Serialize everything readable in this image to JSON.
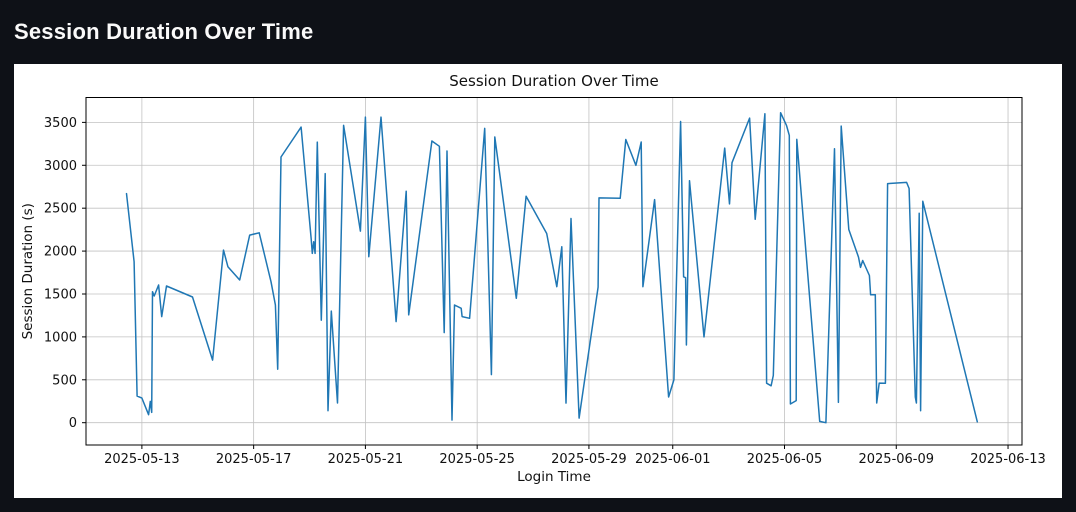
{
  "page": {
    "title": "Session Duration Over Time",
    "background": "#0e1117",
    "header_text_color": "#fafafa",
    "card_background": "#ffffff"
  },
  "chart_data": {
    "type": "line",
    "title": "Session Duration Over Time",
    "xlabel": "Login Time",
    "ylabel": "Session Duration (s)",
    "legend": "none",
    "grid": true,
    "grid_color": "#c2c2c2",
    "line_color": "#1f77b4",
    "line_width": 1.5,
    "spine_color": "#000000",
    "text_color": "#111111",
    "x_unit": "days since 2025-05-13",
    "xlim": [
      -2.0,
      31.5
    ],
    "ylim": [
      -260,
      3790
    ],
    "x_ticks": [
      {
        "t": 0,
        "label": "2025-05-13"
      },
      {
        "t": 4,
        "label": "2025-05-17"
      },
      {
        "t": 8,
        "label": "2025-05-21"
      },
      {
        "t": 12,
        "label": "2025-05-25"
      },
      {
        "t": 16,
        "label": "2025-05-29"
      },
      {
        "t": 19,
        "label": "2025-06-01"
      },
      {
        "t": 23,
        "label": "2025-06-05"
      },
      {
        "t": 27,
        "label": "2025-06-09"
      },
      {
        "t": 31,
        "label": "2025-06-13"
      }
    ],
    "y_ticks": [
      0,
      500,
      1000,
      1500,
      2000,
      2500,
      3000,
      3500
    ],
    "points": [
      [
        -0.55,
        2670
      ],
      [
        -0.28,
        1876
      ],
      [
        -0.17,
        310
      ],
      [
        0.0,
        287
      ],
      [
        0.24,
        93
      ],
      [
        0.3,
        248
      ],
      [
        0.35,
        120
      ],
      [
        0.38,
        1527
      ],
      [
        0.44,
        1477
      ],
      [
        0.6,
        1605
      ],
      [
        0.71,
        1236
      ],
      [
        0.88,
        1593
      ],
      [
        1.81,
        1465
      ],
      [
        2.53,
        730
      ],
      [
        2.92,
        2012
      ],
      [
        3.08,
        1818
      ],
      [
        3.5,
        1663
      ],
      [
        3.86,
        2186
      ],
      [
        4.2,
        2213
      ],
      [
        4.62,
        1643
      ],
      [
        4.78,
        1372
      ],
      [
        4.86,
        624
      ],
      [
        4.98,
        3097
      ],
      [
        5.7,
        3445
      ],
      [
        6.06,
        2140
      ],
      [
        6.1,
        1973
      ],
      [
        6.15,
        2109
      ],
      [
        6.2,
        1973
      ],
      [
        6.28,
        3270
      ],
      [
        6.42,
        1195
      ],
      [
        6.56,
        2903
      ],
      [
        6.66,
        140
      ],
      [
        6.78,
        1300
      ],
      [
        7.0,
        230
      ],
      [
        7.22,
        3465
      ],
      [
        7.82,
        2233
      ],
      [
        8.0,
        3562
      ],
      [
        8.12,
        1934
      ],
      [
        8.56,
        3562
      ],
      [
        9.1,
        1178
      ],
      [
        9.46,
        2698
      ],
      [
        9.55,
        1256
      ],
      [
        10.38,
        3283
      ],
      [
        10.65,
        3221
      ],
      [
        10.82,
        1050
      ],
      [
        10.92,
        3167
      ],
      [
        11.1,
        30
      ],
      [
        11.19,
        1372
      ],
      [
        11.43,
        1333
      ],
      [
        11.46,
        1236
      ],
      [
        11.73,
        1217
      ],
      [
        12.27,
        3430
      ],
      [
        12.51,
        560
      ],
      [
        12.63,
        3330
      ],
      [
        13.4,
        1450
      ],
      [
        13.75,
        2640
      ],
      [
        14.49,
        2205
      ],
      [
        14.85,
        1585
      ],
      [
        15.03,
        2050
      ],
      [
        15.18,
        228
      ],
      [
        15.36,
        2380
      ],
      [
        15.65,
        53
      ],
      [
        16.33,
        1580
      ],
      [
        16.36,
        2620
      ],
      [
        17.12,
        2615
      ],
      [
        17.32,
        3300
      ],
      [
        17.68,
        3000
      ],
      [
        17.87,
        3271
      ],
      [
        17.93,
        1585
      ],
      [
        18.35,
        2600
      ],
      [
        18.85,
        300
      ],
      [
        19.04,
        500
      ],
      [
        19.28,
        3510
      ],
      [
        19.39,
        1700
      ],
      [
        19.46,
        1690
      ],
      [
        19.49,
        905
      ],
      [
        19.6,
        2820
      ],
      [
        20.12,
        1000
      ],
      [
        20.86,
        3200
      ],
      [
        21.03,
        2550
      ],
      [
        21.12,
        3030
      ],
      [
        21.75,
        3550
      ],
      [
        21.95,
        2370
      ],
      [
        22.3,
        3600
      ],
      [
        22.36,
        460
      ],
      [
        22.52,
        430
      ],
      [
        22.6,
        550
      ],
      [
        22.86,
        3613
      ],
      [
        23.07,
        3465
      ],
      [
        23.17,
        3348
      ],
      [
        23.21,
        218
      ],
      [
        23.42,
        257
      ],
      [
        23.44,
        3302
      ],
      [
        24.26,
        15
      ],
      [
        24.48,
        0
      ],
      [
        24.79,
        3192
      ],
      [
        24.93,
        237
      ],
      [
        25.03,
        3457
      ],
      [
        25.3,
        2252
      ],
      [
        25.65,
        1930
      ],
      [
        25.72,
        1810
      ],
      [
        25.8,
        1890
      ],
      [
        26.04,
        1715
      ],
      [
        26.08,
        1490
      ],
      [
        26.25,
        1490
      ],
      [
        26.3,
        229
      ],
      [
        26.39,
        462
      ],
      [
        26.61,
        459
      ],
      [
        26.69,
        2787
      ],
      [
        27.37,
        2800
      ],
      [
        27.46,
        2730
      ],
      [
        27.68,
        300
      ],
      [
        27.72,
        230
      ],
      [
        27.82,
        2440
      ],
      [
        27.87,
        140
      ],
      [
        27.95,
        2580
      ],
      [
        29.9,
        10
      ]
    ]
  }
}
